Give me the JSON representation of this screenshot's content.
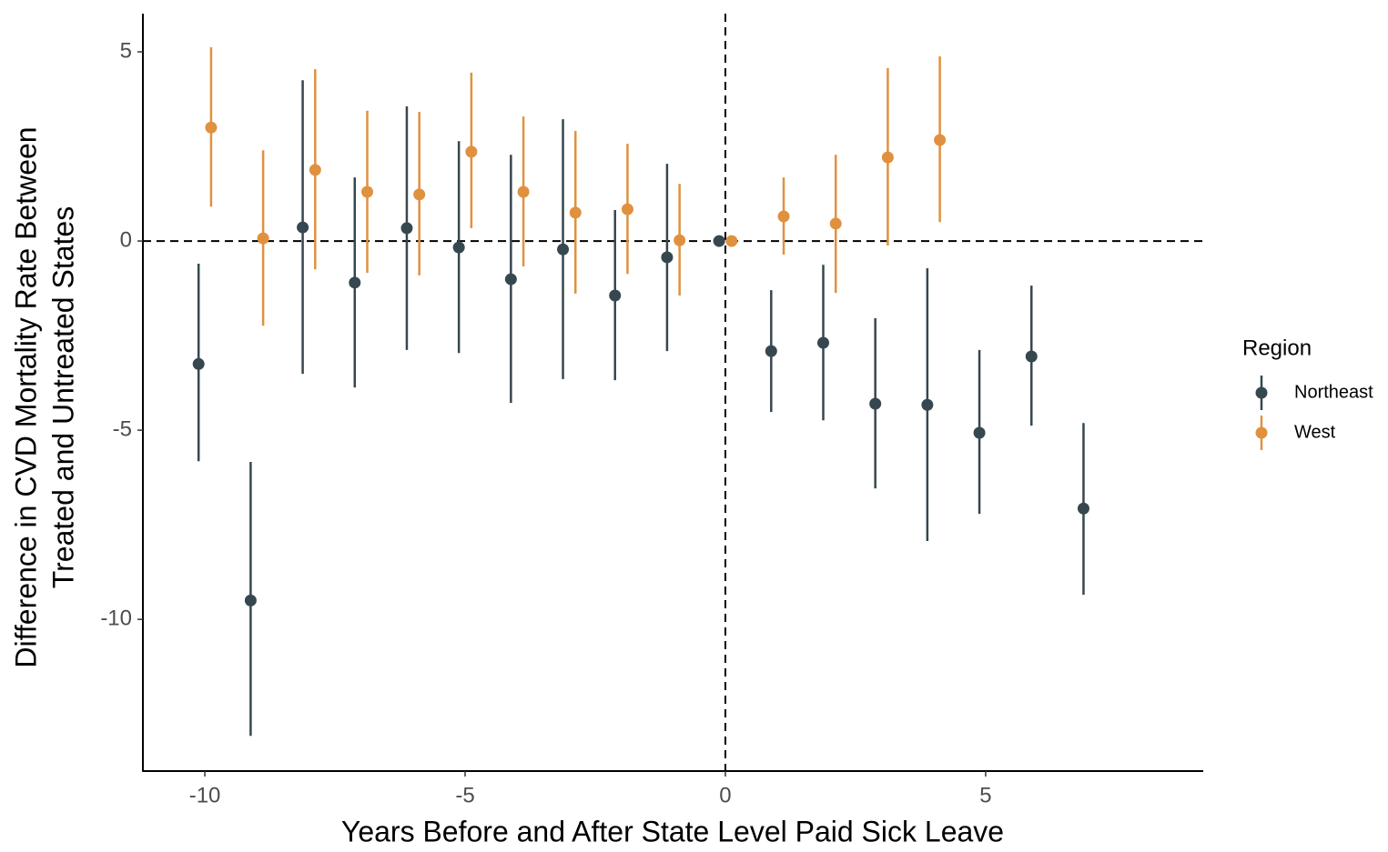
{
  "chart_data": {
    "type": "pointrange",
    "x_label": "Years Before and After State Level Paid Sick Leave",
    "y_label": [
      "Difference in CVD Mortality Rate Between",
      "Treated and Untreated States"
    ],
    "legend_title": "Region",
    "legend": "right",
    "xlim": [
      -11.19,
      9.18
    ],
    "ylim": [
      -14.01,
      6.01
    ],
    "xticks": [
      -10,
      -5,
      0,
      5
    ],
    "yticks": [
      -10,
      -5,
      0,
      5
    ],
    "reference_lines": {
      "x": 0,
      "y": 0
    },
    "series": [
      {
        "name": "Northeast",
        "color": "#36474f",
        "x": [
          -10,
          -9,
          -8,
          -7,
          -6,
          -5,
          -4,
          -3,
          -2,
          -1,
          0,
          1,
          2,
          3,
          4,
          5,
          6,
          7
        ],
        "values": [
          -3.25,
          -9.5,
          0.36,
          -1.1,
          0.34,
          -0.17,
          -1.01,
          -0.22,
          -1.44,
          -0.43,
          0,
          -2.91,
          -2.69,
          -4.3,
          -4.33,
          -5.07,
          -3.05,
          -7.07
        ],
        "lower": [
          -5.82,
          -13.08,
          -3.51,
          -3.87,
          -2.88,
          -2.96,
          -4.28,
          -3.65,
          -3.68,
          -2.91,
          null,
          -4.52,
          -4.74,
          -6.54,
          -7.93,
          -7.21,
          -4.88,
          -9.35
        ],
        "upper": [
          -0.6,
          -5.84,
          4.25,
          1.68,
          3.56,
          2.64,
          2.28,
          3.22,
          0.82,
          2.04,
          null,
          -1.3,
          -0.63,
          -2.04,
          -0.72,
          -2.88,
          -1.18,
          -4.81
        ]
      },
      {
        "name": "West",
        "color": "#e0913f",
        "x": [
          -10,
          -9,
          -8,
          -7,
          -6,
          -5,
          -4,
          -3,
          -2,
          -1,
          0,
          1,
          2,
          3,
          4
        ],
        "values": [
          3.0,
          0.07,
          1.88,
          1.3,
          1.23,
          2.36,
          1.3,
          0.75,
          0.84,
          0.02,
          0,
          0.65,
          0.46,
          2.21,
          2.67
        ],
        "lower": [
          0.91,
          -2.24,
          -0.75,
          -0.84,
          -0.91,
          0.34,
          -0.67,
          -1.39,
          -0.87,
          -1.44,
          null,
          -0.36,
          -1.37,
          -0.12,
          0.5
        ],
        "upper": [
          5.12,
          2.4,
          4.54,
          3.44,
          3.41,
          4.45,
          3.29,
          2.91,
          2.57,
          1.51,
          null,
          1.68,
          2.28,
          4.57,
          4.88
        ]
      }
    ]
  }
}
